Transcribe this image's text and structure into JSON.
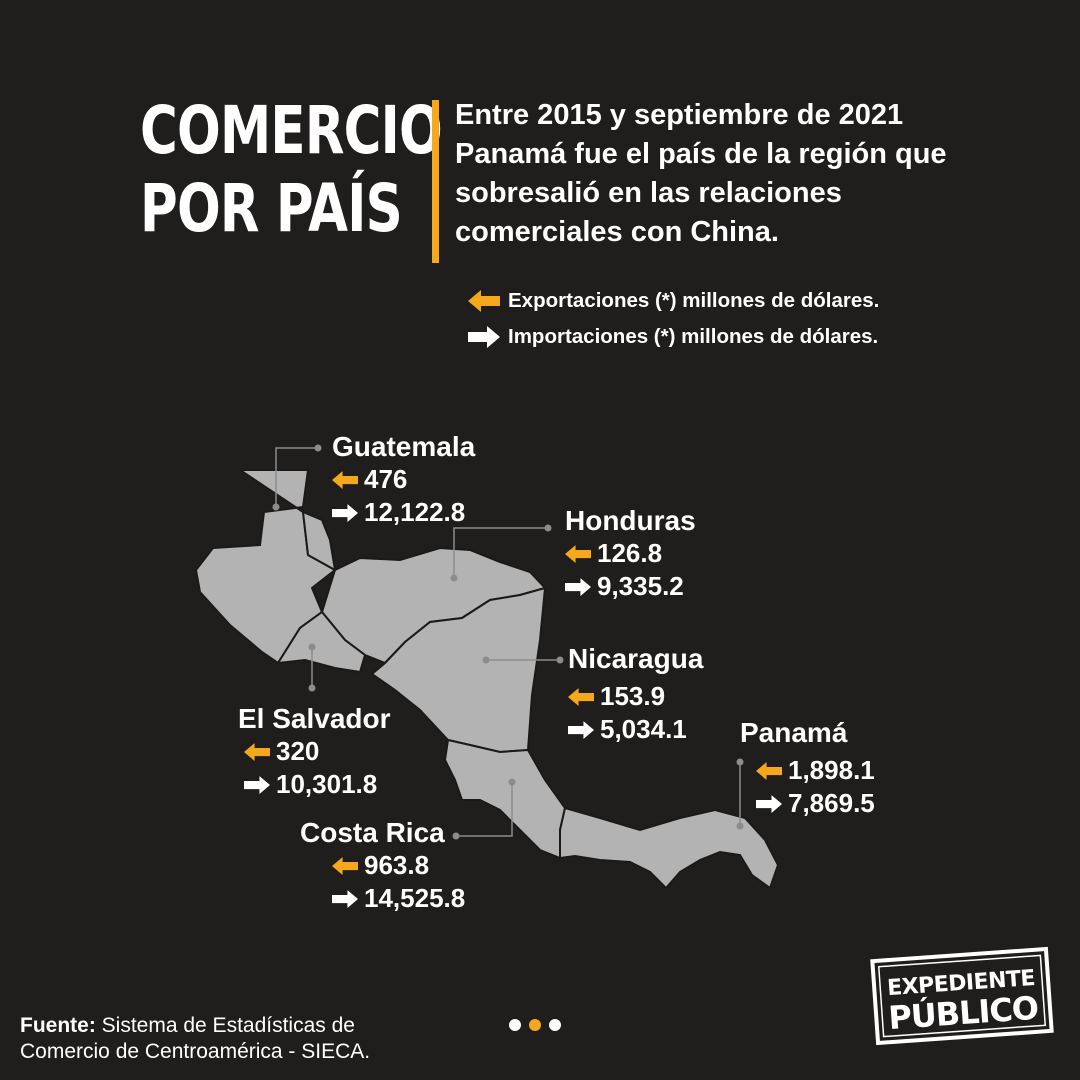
{
  "title": {
    "line1": "COMERCIO",
    "line2": "POR PAÍS"
  },
  "intro": "Entre 2015 y septiembre de 2021 Panamá fue el país de la región que sobresalió en las relaciones comerciales con China.",
  "legend": {
    "exports": {
      "label": "Exportaciones (*) millones de dólares.",
      "icon": "arrow-left-icon",
      "color": "#f5a81c"
    },
    "imports": {
      "label": "Importaciones (*) millones de dólares.",
      "icon": "arrow-right-icon",
      "color": "#ffffff"
    }
  },
  "countries": {
    "guatemala": {
      "name": "Guatemala",
      "exports": "476",
      "imports": "12,122.8"
    },
    "honduras": {
      "name": "Honduras",
      "exports": "126.8",
      "imports": "9,335.2"
    },
    "nicaragua": {
      "name": "Nicaragua",
      "exports": "153.9",
      "imports": "5,034.1"
    },
    "el_salvador": {
      "name": "El Salvador",
      "exports": "320",
      "imports": "10,301.8"
    },
    "costa_rica": {
      "name": "Costa Rica",
      "exports": "963.8",
      "imports": "14,525.8"
    },
    "panama": {
      "name": "Panamá",
      "exports": "1,898.1",
      "imports": "7,869.5"
    }
  },
  "source": {
    "label": "Fuente:",
    "text": "Sistema de Estadísticas de Comercio de Centroamérica - SIECA."
  },
  "pager": {
    "total": 3,
    "active": 2
  },
  "logo": {
    "line1": "EXPEDIENTE",
    "line2": "PÚBLICO"
  },
  "colors": {
    "background": "#201e1c",
    "accent": "#f5a81c",
    "map_fill": "#b3b3b3",
    "map_border": "#1c1a18",
    "leader": "#8c8c8c"
  }
}
